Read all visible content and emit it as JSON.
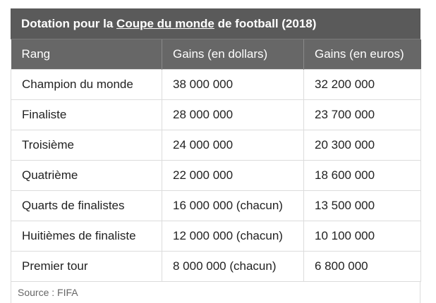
{
  "title": {
    "prefix": "Dotation pour la ",
    "link": "Coupe du monde",
    "suffix": " de football (2018)"
  },
  "headers": [
    "Rang",
    "Gains (en dollars)",
    "Gains (en euros)"
  ],
  "rows": [
    [
      "Champion du monde",
      "38 000 000",
      "32 200 000"
    ],
    [
      "Finaliste",
      "28 000 000",
      "23 700 000"
    ],
    [
      "Troisième",
      "24 000 000",
      "20 300 000"
    ],
    [
      "Quatrième",
      "22 000 000",
      "18 600 000"
    ],
    [
      "Quarts de finalistes",
      "16 000 000 (chacun)",
      "13 500 000"
    ],
    [
      "Huitièmes de finaliste",
      "12 000 000 (chacun)",
      "10 100 000"
    ],
    [
      "Premier tour",
      "8 000 000 (chacun)",
      "6 800 000"
    ]
  ],
  "source": "Source : FIFA"
}
